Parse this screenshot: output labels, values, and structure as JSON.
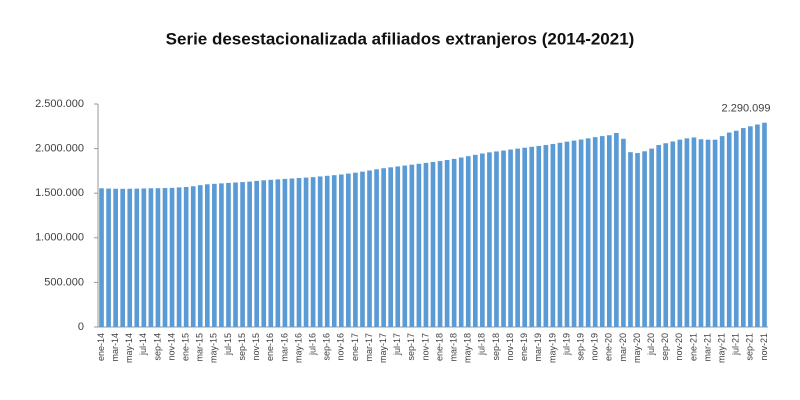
{
  "chart_data": {
    "type": "bar",
    "title": "Serie desestacionalizada afiliados extranjeros (2014-2021)",
    "annotation": "2.290.099",
    "color": "#5b9bd5",
    "grid": false,
    "categories": [
      "ene-14",
      null,
      "mar-14",
      null,
      "may-14",
      null,
      "jul-14",
      null,
      "sep-14",
      null,
      "nov-14",
      null,
      "ene-15",
      null,
      "mar-15",
      null,
      "may-15",
      null,
      "jul-15",
      null,
      "sep-15",
      null,
      "nov-15",
      null,
      "ene-16",
      null,
      "mar-16",
      null,
      "may-16",
      null,
      "jul-16",
      null,
      "sep-16",
      null,
      "nov-16",
      null,
      "ene-17",
      null,
      "mar-17",
      null,
      "may-17",
      null,
      "jul-17",
      null,
      "sep-17",
      null,
      "nov-17",
      null,
      "ene-18",
      null,
      "mar-18",
      null,
      "may-18",
      null,
      "jul-18",
      null,
      "sep-18",
      null,
      "nov-18",
      null,
      "ene-19",
      null,
      "mar-19",
      null,
      "may-19",
      null,
      "jul-19",
      null,
      "sep-19",
      null,
      "nov-19",
      null,
      "ene-20",
      null,
      "mar-20",
      null,
      "may-20",
      null,
      "jul-20",
      null,
      "sep-20",
      null,
      "nov-20",
      null,
      "ene-21",
      null,
      "mar-21",
      null,
      "may-21",
      null,
      "jul-21",
      null,
      "sep-21",
      null,
      "nov-21"
    ],
    "values": [
      1555000,
      1552000,
      1550000,
      1549000,
      1550000,
      1551000,
      1553000,
      1555000,
      1556000,
      1558000,
      1560000,
      1565000,
      1570000,
      1578000,
      1590000,
      1600000,
      1605000,
      1610000,
      1615000,
      1620000,
      1625000,
      1630000,
      1638000,
      1645000,
      1650000,
      1655000,
      1660000,
      1665000,
      1670000,
      1675000,
      1680000,
      1688000,
      1695000,
      1702000,
      1710000,
      1720000,
      1730000,
      1742000,
      1755000,
      1768000,
      1780000,
      1790000,
      1800000,
      1810000,
      1820000,
      1830000,
      1840000,
      1850000,
      1860000,
      1872000,
      1885000,
      1900000,
      1915000,
      1930000,
      1945000,
      1958000,
      1968000,
      1978000,
      1990000,
      2000000,
      2010000,
      2020000,
      2030000,
      2040000,
      2052000,
      2065000,
      2078000,
      2090000,
      2102000,
      2115000,
      2128000,
      2140000,
      2150000,
      2175000,
      2110000,
      1960000,
      1950000,
      1970000,
      2000000,
      2040000,
      2060000,
      2080000,
      2100000,
      2115000,
      2125000,
      2105000,
      2100000,
      2100000,
      2140000,
      2180000,
      2200000,
      2230000,
      2250000,
      2270000,
      2290099
    ],
    "ylim": [
      0,
      2500000
    ],
    "yticks": [
      0,
      {
        "value": 500000,
        "label": "500.000"
      },
      {
        "value": 1000000,
        "label": "1.000.000"
      },
      {
        "value": 1500000,
        "label": "1.500.000"
      },
      {
        "value": 2000000,
        "label": "2.000.000"
      },
      {
        "value": 2500000,
        "label": "2.500.000"
      }
    ]
  }
}
